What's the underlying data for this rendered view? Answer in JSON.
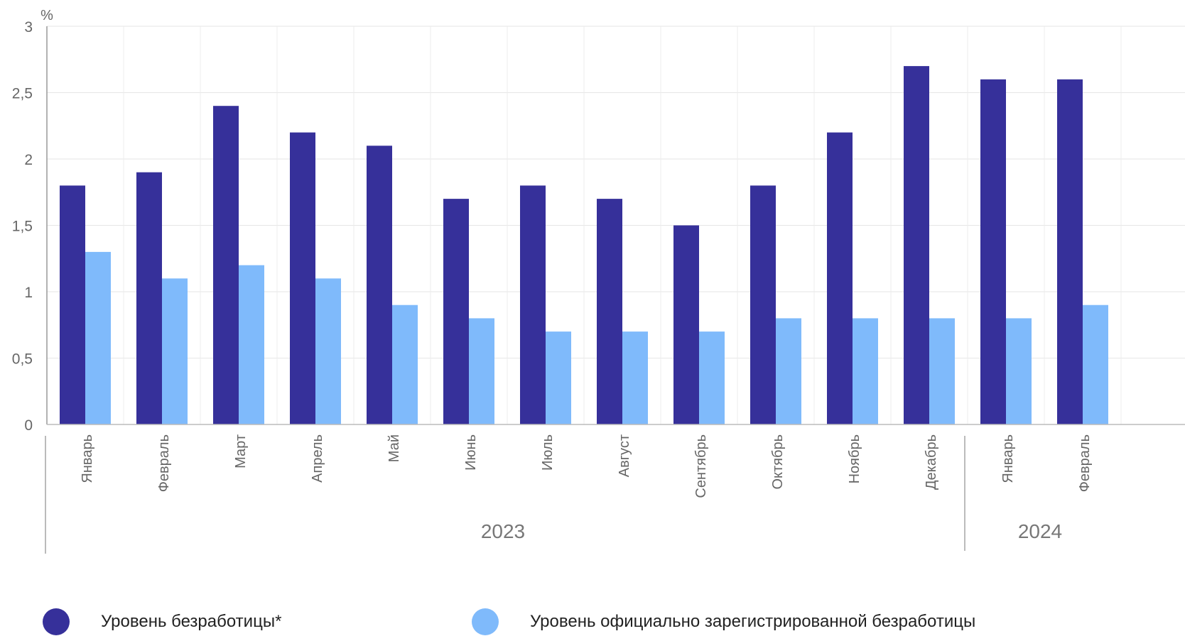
{
  "chart_data": {
    "type": "bar",
    "ylabel": "%",
    "ylim": [
      0,
      3
    ],
    "yticks": [
      "0",
      "0,5",
      "1",
      "1,5",
      "2",
      "2,5",
      "3"
    ],
    "categories": [
      "Январь",
      "Февраль",
      "Март",
      "Апрель",
      "Май",
      "Июнь",
      "Июль",
      "Август",
      "Сентябрь",
      "Октябрь",
      "Ноябрь",
      "Декабрь",
      "Январь",
      "Февраль"
    ],
    "groups": [
      {
        "label": "2023",
        "count": 12
      },
      {
        "label": "2024",
        "count": 2
      }
    ],
    "series": [
      {
        "name": "Уровень безработицы*",
        "color": "#36309a",
        "values": [
          1.8,
          1.9,
          2.4,
          2.2,
          2.1,
          1.7,
          1.8,
          1.7,
          1.5,
          1.8,
          2.2,
          2.7,
          2.6,
          2.6
        ]
      },
      {
        "name": "Уровень официально зарегистрированной безработицы",
        "color": "#7fbafb",
        "values": [
          1.3,
          1.1,
          1.2,
          1.1,
          0.9,
          0.8,
          0.7,
          0.7,
          0.7,
          0.8,
          0.8,
          0.8,
          0.8,
          0.9
        ]
      }
    ],
    "grid": true,
    "legend_position": "bottom"
  }
}
